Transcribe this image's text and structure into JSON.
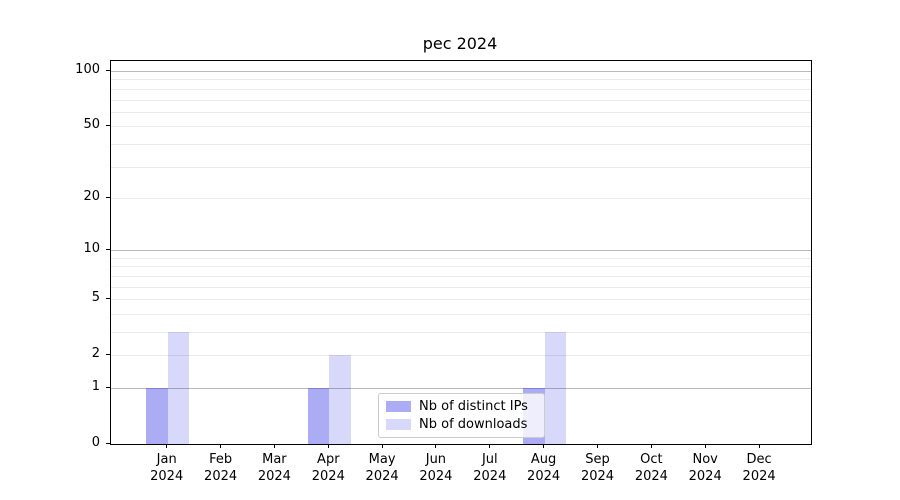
{
  "figure": {
    "title": "pec 2024"
  },
  "chart_data": {
    "type": "bar",
    "title": "pec 2024",
    "categories": [
      "Jan",
      "Feb",
      "Mar",
      "Apr",
      "May",
      "Jun",
      "Jul",
      "Aug",
      "Sep",
      "Oct",
      "Nov",
      "Dec"
    ],
    "year_label": "2024",
    "series": [
      {
        "name": "Nb of distinct IPs",
        "color": "rgba(40,40,230,0.385)",
        "values": [
          1,
          0,
          0,
          1,
          0,
          0,
          0,
          1,
          0,
          0,
          0,
          0
        ]
      },
      {
        "name": "Nb of downloads",
        "color": "rgba(40,40,230,0.18)",
        "values": [
          3,
          0,
          0,
          2,
          0,
          0,
          0,
          3,
          0,
          0,
          0,
          0
        ]
      }
    ],
    "xlabel": "",
    "ylabel": "",
    "yscale": "log1p",
    "ylim": [
      0,
      113
    ],
    "y_ticks": [
      0,
      1,
      2,
      5,
      10,
      20,
      50,
      100
    ],
    "y_major_gridlines": [
      1,
      10,
      100
    ],
    "y_minor_gridlines": [
      2,
      3,
      4,
      5,
      6,
      7,
      8,
      9,
      20,
      30,
      40,
      50,
      60,
      70,
      80,
      90
    ],
    "grid": true,
    "legend_position": "lower center, inside axes",
    "colors": {
      "grid_major": "#b9b9b9",
      "grid_minor": "#eaeaea",
      "axis": "#000000",
      "legend_border": "#cccccc",
      "background": "#ffffff"
    }
  }
}
